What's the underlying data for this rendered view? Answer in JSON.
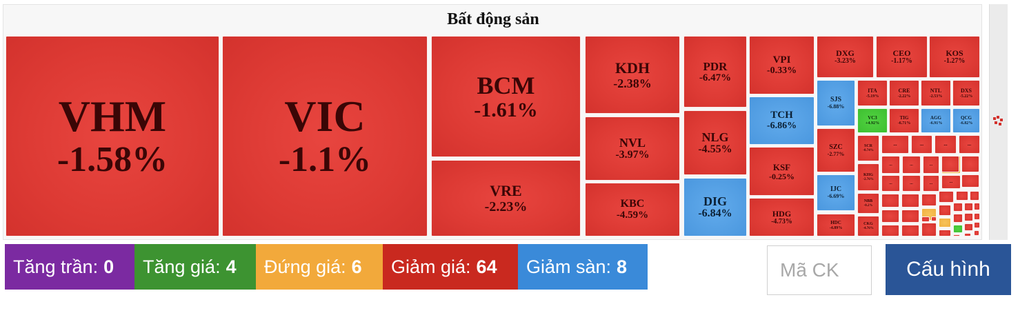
{
  "sector": {
    "title": "Bất động sản"
  },
  "colors": {
    "down": "#dd3a34",
    "up": "#3dbf30",
    "ref": "#f0b040",
    "floor": "#4a97de",
    "ceiling": "#7b2aa1",
    "config_button": "#2a5597"
  },
  "tiles": [
    {
      "symbol": "VHM",
      "change": "-1.58%",
      "status": "down"
    },
    {
      "symbol": "VIC",
      "change": "-1.1%",
      "status": "down"
    },
    {
      "symbol": "BCM",
      "change": "-1.61%",
      "status": "down"
    },
    {
      "symbol": "VRE",
      "change": "-2.23%",
      "status": "down"
    },
    {
      "symbol": "KDH",
      "change": "-2.38%",
      "status": "down"
    },
    {
      "symbol": "NVL",
      "change": "-3.97%",
      "status": "down"
    },
    {
      "symbol": "KBC",
      "change": "-4.59%",
      "status": "down"
    },
    {
      "symbol": "PDR",
      "change": "-6.47%",
      "status": "down"
    },
    {
      "symbol": "NLG",
      "change": "-4.55%",
      "status": "down"
    },
    {
      "symbol": "DIG",
      "change": "-6.84%",
      "status": "floor"
    },
    {
      "symbol": "VPI",
      "change": "-0.33%",
      "status": "down"
    },
    {
      "symbol": "TCH",
      "change": "-6.86%",
      "status": "floor"
    },
    {
      "symbol": "KSF",
      "change": "-0.25%",
      "status": "down"
    },
    {
      "symbol": "HDG",
      "change": "-4.73%",
      "status": "down"
    },
    {
      "symbol": "DXG",
      "change": "-3.23%",
      "status": "down"
    },
    {
      "symbol": "CEO",
      "change": "-1.17%",
      "status": "down"
    },
    {
      "symbol": "KOS",
      "change": "-1.27%",
      "status": "down"
    },
    {
      "symbol": "SJS",
      "change": "-6.88%",
      "status": "floor"
    },
    {
      "symbol": "SZC",
      "change": "-2.77%",
      "status": "down"
    },
    {
      "symbol": "IJC",
      "change": "-6.69%",
      "status": "floor"
    },
    {
      "symbol": "HDC",
      "change": "-4.89%",
      "status": "down"
    },
    {
      "symbol": "ITA",
      "change": "-5.19%",
      "status": "down"
    },
    {
      "symbol": "CRE",
      "change": "-2.22%",
      "status": "down"
    },
    {
      "symbol": "NTL",
      "change": "-2.53%",
      "status": "down"
    },
    {
      "symbol": "DXS",
      "change": "-5.22%",
      "status": "down"
    },
    {
      "symbol": "VC3",
      "change": "+4.92%",
      "status": "up"
    },
    {
      "symbol": "TIG",
      "change": "-6.71%",
      "status": "down"
    },
    {
      "symbol": "AGG",
      "change": "-6.91%",
      "status": "floor"
    },
    {
      "symbol": "QCG",
      "change": "-6.82%",
      "status": "floor"
    },
    {
      "symbol": "SCR",
      "change": "-0.74%",
      "status": "down"
    },
    {
      "symbol": "KHG",
      "change": "-2.76%",
      "status": "down"
    },
    {
      "symbol": "NBB",
      "change": "-0.2%",
      "status": "down"
    },
    {
      "symbol": "CKG",
      "change": "-4.76%",
      "status": "down"
    },
    {
      "symbol": "...",
      "change": "",
      "status": "down"
    },
    {
      "symbol": "...",
      "change": "",
      "status": "down"
    },
    {
      "symbol": "...",
      "change": "",
      "status": "down"
    },
    {
      "symbol": "...",
      "change": "",
      "status": "down"
    },
    {
      "symbol": "...",
      "change": "",
      "status": "down"
    },
    {
      "symbol": "...",
      "change": "",
      "status": "down"
    },
    {
      "symbol": "...",
      "change": "",
      "status": "down"
    },
    {
      "symbol": "...",
      "change": "",
      "status": "down"
    },
    {
      "symbol": "...",
      "change": "",
      "status": "down"
    },
    {
      "symbol": "...",
      "change": "",
      "status": "down"
    },
    {
      "symbol": "...",
      "change": "",
      "status": "down"
    },
    {
      "symbol": "...",
      "change": "",
      "status": "ref"
    }
  ],
  "small_cells": [
    "down",
    "down",
    "down",
    "down",
    "down",
    "down",
    "down",
    "down",
    "down",
    "down",
    "down",
    "ref",
    "down",
    "down",
    "down",
    "down",
    "down",
    "down",
    "down",
    "ref",
    "down",
    "down",
    "down",
    "down",
    "up",
    "down",
    "down",
    "down",
    "down",
    "down",
    "down",
    "down"
  ],
  "legend": [
    {
      "label": "Tăng trần:",
      "count": "0",
      "status": "ceiling"
    },
    {
      "label": "Tăng giá:",
      "count": "4",
      "status": "up"
    },
    {
      "label": "Đứng giá:",
      "count": "6",
      "status": "ref"
    },
    {
      "label": "Giảm giá:",
      "count": "64",
      "status": "down"
    },
    {
      "label": "Giảm sàn:",
      "count": "8",
      "status": "floor"
    }
  ],
  "search": {
    "placeholder": "Mã CK",
    "value": ""
  },
  "config": {
    "label": "Cấu hình"
  }
}
